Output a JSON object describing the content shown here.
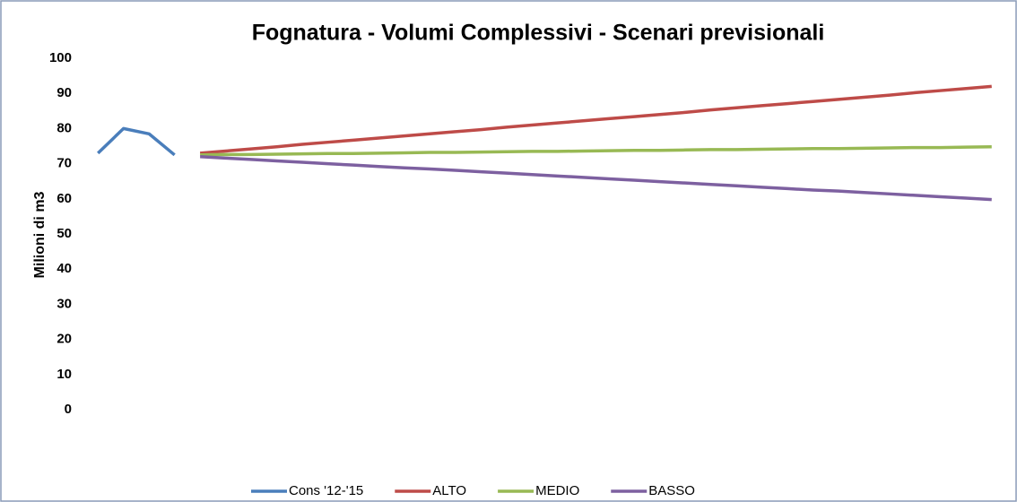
{
  "chart_data": {
    "type": "line",
    "title": "Fognatura - Volumi Complessivi - Scenari previsionali",
    "y_label": "Milioni di m3",
    "categories": [
      null,
      null,
      null,
      null,
      null,
      null,
      null,
      null,
      null,
      null,
      null,
      null,
      null,
      null,
      null,
      null,
      null,
      null,
      null,
      null,
      null,
      null,
      null,
      null,
      null,
      null,
      null,
      null,
      null,
      null,
      null,
      null,
      null,
      null,
      null,
      null
    ],
    "series": [
      {
        "name": "Cons '12-'15",
        "color": "#4a7ebb",
        "values": [
          73,
          80,
          78.5,
          72.5,
          null,
          null,
          null,
          null,
          null,
          null,
          null,
          null,
          null,
          null,
          null,
          null,
          null,
          null,
          null,
          null,
          null,
          null,
          null,
          null,
          null,
          null,
          null,
          null,
          null,
          null,
          null,
          null,
          null,
          null,
          null,
          null
        ]
      },
      {
        "name": "ALTO",
        "color": "#be4b48",
        "values": [
          null,
          null,
          null,
          null,
          73,
          73.6,
          74.2,
          74.8,
          75.5,
          76.1,
          76.7,
          77.3,
          77.9,
          78.5,
          79.1,
          79.7,
          80.4,
          81,
          81.6,
          82.2,
          82.8,
          83.4,
          84,
          84.6,
          85.3,
          85.9,
          86.5,
          87.1,
          87.7,
          88.3,
          88.9,
          89.5,
          90.2,
          90.8,
          91.4,
          92
        ]
      },
      {
        "name": "MEDIO",
        "color": "#98b954",
        "values": [
          null,
          null,
          null,
          null,
          72.5,
          72.6,
          72.6,
          72.7,
          72.8,
          72.9,
          72.9,
          73,
          73.1,
          73.2,
          73.2,
          73.3,
          73.4,
          73.5,
          73.5,
          73.6,
          73.7,
          73.8,
          73.8,
          73.9,
          74,
          74,
          74.1,
          74.2,
          74.3,
          74.3,
          74.4,
          74.5,
          74.6,
          74.6,
          74.7,
          74.8
        ]
      },
      {
        "name": "BASSO",
        "color": "#7d60a0",
        "values": [
          null,
          null,
          null,
          null,
          72,
          71.6,
          71.2,
          70.8,
          70.4,
          70,
          69.6,
          69.2,
          68.8,
          68.5,
          68.1,
          67.7,
          67.3,
          66.9,
          66.5,
          66.1,
          65.7,
          65.3,
          64.9,
          64.5,
          64.1,
          63.7,
          63.3,
          62.9,
          62.5,
          62.2,
          61.8,
          61.4,
          61,
          60.6,
          60.2,
          59.8
        ]
      }
    ],
    "ylim": [
      0,
      100
    ],
    "yticks": [
      0,
      10,
      20,
      30,
      40,
      50,
      60,
      70,
      80,
      90,
      100
    ],
    "grid": false,
    "legend": "bottom"
  }
}
